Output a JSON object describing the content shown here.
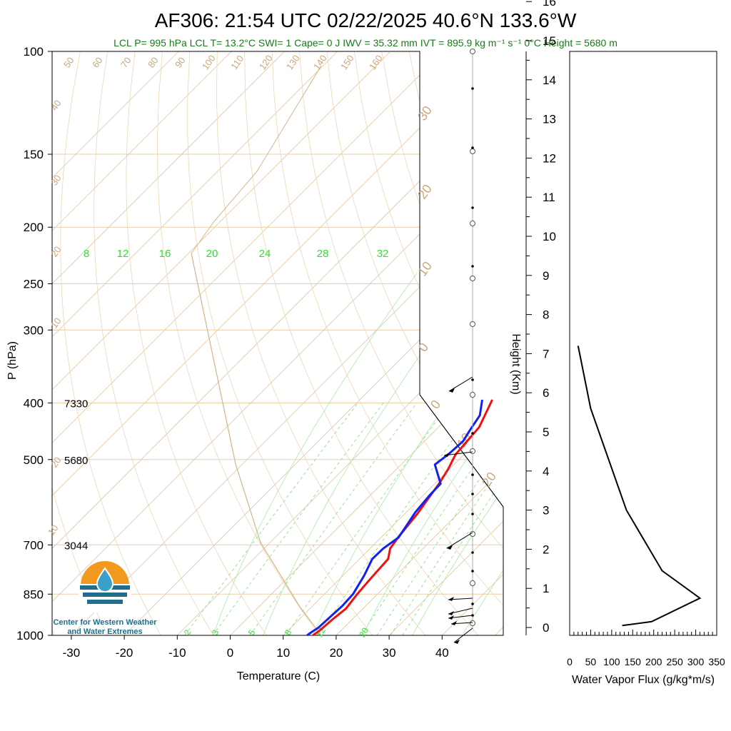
{
  "header": {
    "title": "AF306: 21:54 UTC 02/22/2025  40.6°N 133.6°W",
    "subtitle": "LCL P= 995 hPa  LCL T= 13.2°C  SWI= 1  Cape= 0 J  IWV = 35.32 mm  IVT = 895.9 kg m⁻¹ s⁻¹  0°C Height = 5680 m"
  },
  "logo": {
    "icon": "water-drop-sun-icon",
    "line1": "Center for Western Weather",
    "line2": "and Water Extremes"
  },
  "colors": {
    "temperature": "#ee1111",
    "dewpoint": "#1122ee",
    "dry_adiabat": "#c8a87c",
    "mixing_ratio": "#33dd33",
    "title_green": "#1a7a1a"
  },
  "chart_data": [
    {
      "type": "line",
      "name": "skewt",
      "xlabel": "Temperature (C)",
      "ylabel": "P (hPa)",
      "x_ticks": [
        -30,
        -20,
        -10,
        0,
        10,
        20,
        30,
        40
      ],
      "y_ticks": [
        100,
        150,
        200,
        250,
        300,
        400,
        500,
        700,
        850,
        1000
      ],
      "y_scale": "log",
      "xlim": [
        -34,
        46
      ],
      "ylim": [
        1000,
        100
      ],
      "height_annotations": [
        {
          "p": 400,
          "label": "7330"
        },
        {
          "p": 500,
          "label": "5680"
        },
        {
          "p": 700,
          "label": "3044"
        }
      ],
      "dry_adiabat_labels": [
        "50",
        "60",
        "70",
        "80",
        "90",
        "100",
        "110",
        "120",
        "130",
        "140",
        "150",
        "160",
        "40",
        "30",
        "20",
        "10",
        "0",
        "10",
        "20",
        "30",
        "20",
        "10",
        "0",
        "10",
        "20",
        "30"
      ],
      "mixing_ratio_top_labels": [
        "8",
        "12",
        "16",
        "20",
        "24",
        "28",
        "32"
      ],
      "mixing_ratio_bottom_labels": [
        "2",
        "3",
        "5",
        "8",
        "12",
        "20"
      ],
      "series": [
        {
          "name": "temperature",
          "points": [
            [
              15.6,
              1000
            ],
            [
              16,
              980
            ],
            [
              16.3,
              940
            ],
            [
              16.8,
              900
            ],
            [
              16.2,
              850
            ],
            [
              15.8,
              800
            ],
            [
              15.4,
              740
            ],
            [
              13.8,
              710
            ],
            [
              13.2,
              680
            ],
            [
              12.4,
              620
            ],
            [
              11.5,
              580
            ],
            [
              10.8,
              550
            ],
            [
              9.8,
              520
            ],
            [
              8.4,
              490
            ],
            [
              8.0,
              460
            ],
            [
              7.7,
              440
            ],
            [
              5.0,
              395
            ]
          ]
        },
        {
          "name": "dewpoint",
          "points": [
            [
              14.5,
              1000
            ],
            [
              14.8,
              985
            ],
            [
              15.2,
              970
            ],
            [
              15.4,
              930
            ],
            [
              15.6,
              890
            ],
            [
              15.4,
              850
            ],
            [
              14.0,
              790
            ],
            [
              12.4,
              740
            ],
            [
              12.5,
              710
            ],
            [
              13.3,
              680
            ],
            [
              12.6,
              650
            ],
            [
              11.7,
              615
            ],
            [
              11.2,
              575
            ],
            [
              11.1,
              550
            ],
            [
              6.4,
              510
            ],
            [
              7.0,
              490
            ],
            [
              7.3,
              465
            ],
            [
              6.5,
              445
            ],
            [
              5.6,
              420
            ],
            [
              3.1,
              395
            ]
          ]
        }
      ]
    },
    {
      "type": "line",
      "name": "water-vapor-flux",
      "xlabel": "Water Vapor Flux (g/kg*m/s)",
      "ylabel": "Height (Km)",
      "x_ticks": [
        "0",
        "50",
        "100",
        "150",
        "200",
        "250",
        "300",
        "350"
      ],
      "y_ticks": [
        "0",
        "1",
        "2",
        "3",
        "4",
        "5",
        "6",
        "7",
        "8",
        "9",
        "10",
        "11",
        "12",
        "13",
        "14",
        "15",
        "16"
      ],
      "xlim": [
        0,
        350
      ],
      "ylim": [
        0,
        16
      ],
      "series": [
        {
          "name": "flux",
          "points": [
            [
              125,
              0.05
            ],
            [
              195,
              0.15
            ],
            [
              310,
              0.75
            ],
            [
              220,
              1.45
            ],
            [
              135,
              3
            ],
            [
              50,
              5.6
            ],
            [
              20,
              7.2
            ]
          ]
        }
      ]
    }
  ]
}
